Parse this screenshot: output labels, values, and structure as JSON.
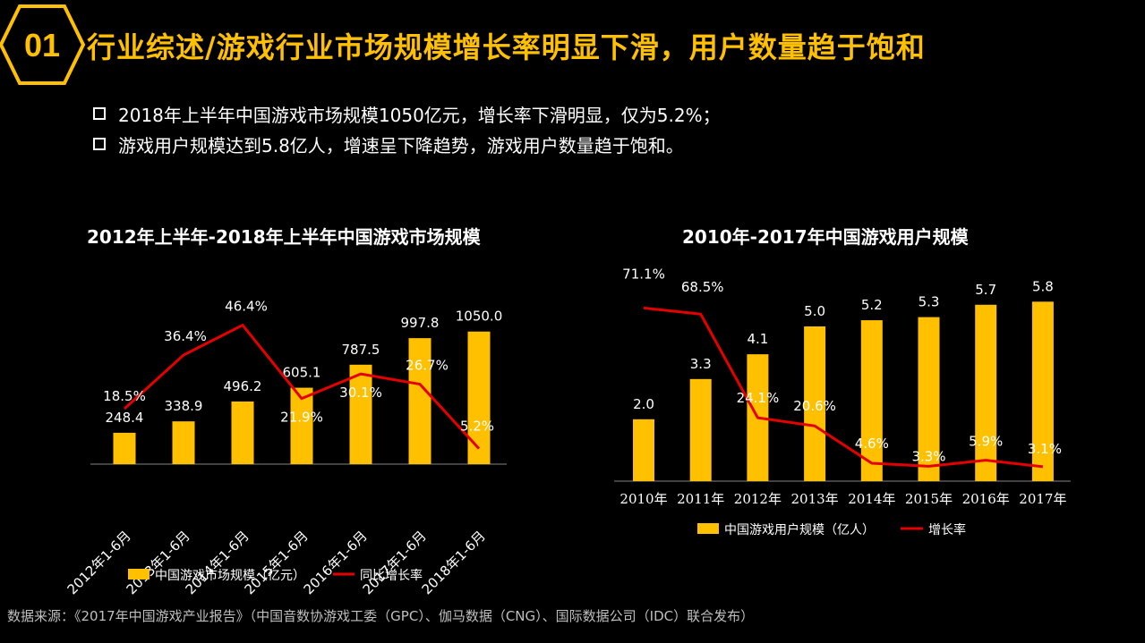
{
  "header": {
    "number": "01",
    "title": "行业综述/游戏行业市场规模增长率明显下滑，用户数量趋于饱和"
  },
  "bullets": [
    "2018年上半年中国游戏市场规模1050亿元，增长率下滑明显，仅为5.2%；",
    "游戏用户规模达到5.8亿人，增速呈下降趋势，游戏用户数量趋于饱和。"
  ],
  "colors": {
    "accent": "#ffc000",
    "bar": "#ffc000",
    "line": "#e50000",
    "background": "#000000"
  },
  "chart_data": [
    {
      "type": "bar",
      "title": "2012年上半年-2018年上半年中国游戏市场规模",
      "categories": [
        "2012年1-6月",
        "2013年1-6月",
        "2014年1-6月",
        "2015年1-6月",
        "2016年1-6月",
        "2017年1-6月",
        "2018年1-6月"
      ],
      "series": [
        {
          "name": "中国游戏市场规模（亿元）",
          "type": "bar",
          "values": [
            248.4,
            338.9,
            496.2,
            605.1,
            787.5,
            997.8,
            1050.0
          ],
          "labels": [
            "248.4",
            "338.9",
            "496.2",
            "605.1",
            "787.5",
            "997.8",
            "1050.0"
          ]
        },
        {
          "name": "同比增长率",
          "type": "line",
          "values": [
            18.5,
            36.4,
            46.4,
            21.9,
            30.1,
            26.7,
            5.2
          ],
          "labels": [
            "18.5%",
            "36.4%",
            "46.4%",
            "21.9%",
            "30.1%",
            "26.7%",
            "5.2%"
          ]
        }
      ],
      "legend": "bottom"
    },
    {
      "type": "bar",
      "title": "2010年-2017年中国游戏用户规模",
      "categories": [
        "2010年",
        "2011年",
        "2012年",
        "2013年",
        "2014年",
        "2015年",
        "2016年",
        "2017年"
      ],
      "series": [
        {
          "name": "中国游戏用户规模（亿人）",
          "type": "bar",
          "values": [
            2.0,
            3.3,
            4.1,
            5.0,
            5.2,
            5.3,
            5.7,
            5.8
          ],
          "labels": [
            "2.0",
            "3.3",
            "4.1",
            "5.0",
            "5.2",
            "5.3",
            "5.7",
            "5.8"
          ]
        },
        {
          "name": "增长率",
          "type": "line",
          "values": [
            71.1,
            68.5,
            24.1,
            20.6,
            4.6,
            3.3,
            5.9,
            3.1
          ],
          "labels": [
            "71.1%",
            "68.5%",
            "24.1%",
            "20.6%",
            "4.6%",
            "3.3%",
            "5.9%",
            "3.1%"
          ]
        }
      ],
      "legend": "bottom"
    }
  ],
  "source": "数据来源：《2017年中国游戏产业报告》（中国音数协游戏工委（GPC）、伽马数据（CNG）、国际数据公司（IDC）联合发布）"
}
